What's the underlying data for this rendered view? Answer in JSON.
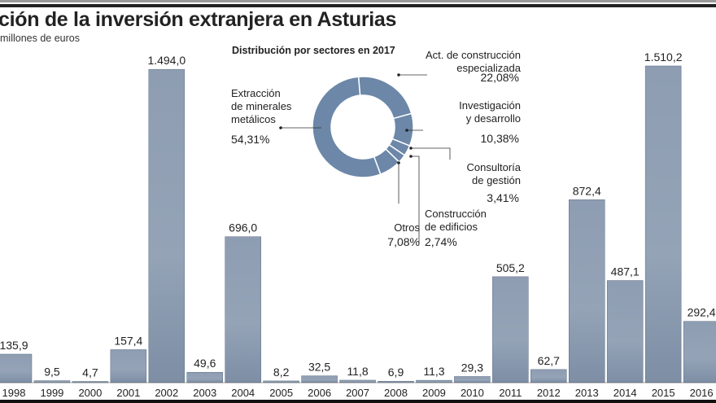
{
  "title": "ción de la inversión extranjera en Asturias",
  "subtitle": "millones de euros",
  "colors": {
    "bar": "#8b9bb0",
    "bar_dark": "#6f8098",
    "donut": "#6c87a8"
  },
  "chart_data": [
    {
      "type": "bar",
      "title": "ción de la inversión extranjera en Asturias",
      "ylabel": "millones de euros",
      "categories": [
        "1998",
        "1999",
        "2000",
        "2001",
        "2002",
        "2003",
        "2004",
        "2005",
        "2006",
        "2007",
        "2008",
        "2009",
        "2010",
        "2011",
        "2012",
        "2013",
        "2014",
        "2015",
        "2016"
      ],
      "values": [
        135.9,
        9.5,
        4.7,
        157.4,
        1494.0,
        49.6,
        696.0,
        8.2,
        32.5,
        11.8,
        6.9,
        11.3,
        29.3,
        505.2,
        62.7,
        872.4,
        487.1,
        1510.2,
        292.4
      ],
      "labels": [
        "135,9",
        "9,5",
        "4,7",
        "157,4",
        "1.494,0",
        "49,6",
        "696,0",
        "8,2",
        "32,5",
        "11,8",
        "6,9",
        "11,3",
        "29,3",
        "505,2",
        "62,7",
        "872,4",
        "487,1",
        "1.510,2",
        "292,4"
      ]
    },
    {
      "type": "pie",
      "title": "Distribución por sectores en 2017",
      "slices": [
        {
          "name": "Act. de construcción especializada",
          "lines": [
            "Act. de construcción",
            "especializada"
          ],
          "value": 22.08,
          "label": "22,08%"
        },
        {
          "name": "Investigación y desarrollo",
          "lines": [
            "Investigación",
            "y desarrollo"
          ],
          "value": 10.38,
          "label": "10,38%"
        },
        {
          "name": "Consultoría de gestión",
          "lines": [
            "Consultoría",
            "de gestión"
          ],
          "value": 3.41,
          "label": "3,41%"
        },
        {
          "name": "Construcción de edificios",
          "lines": [
            "Construcción",
            "de edificios"
          ],
          "value": 2.74,
          "label": "2,74%"
        },
        {
          "name": "Otros",
          "lines": [
            "Otros"
          ],
          "value": 7.08,
          "label": "7,08%"
        },
        {
          "name": "Extracción de minerales metálicos",
          "lines": [
            "Extracción",
            "de minerales",
            "metálicos"
          ],
          "value": 54.31,
          "label": "54,31%"
        }
      ]
    }
  ]
}
